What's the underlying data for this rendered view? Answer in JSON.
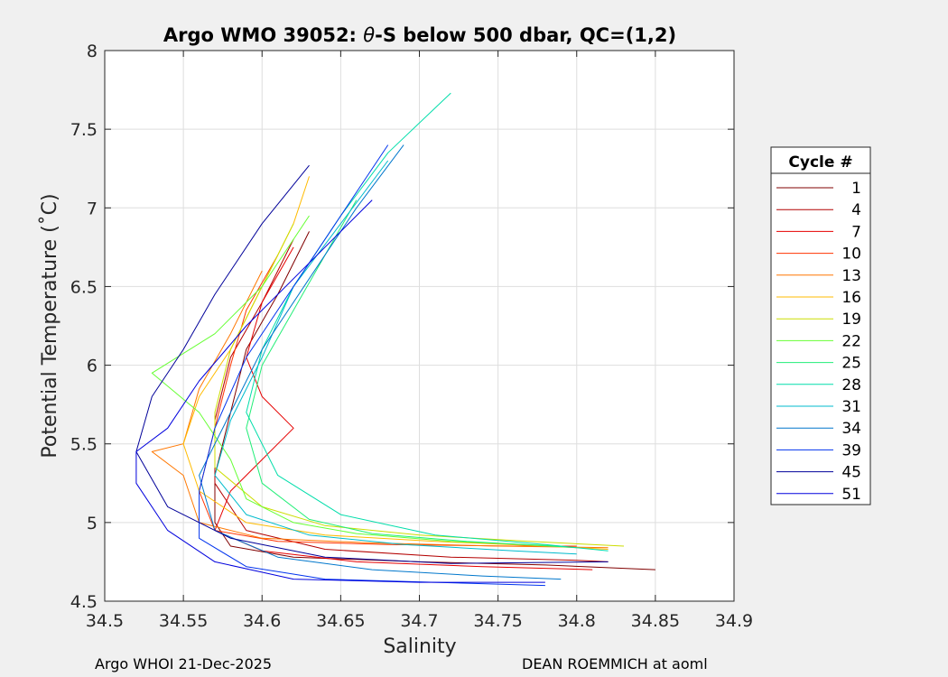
{
  "chart_data": {
    "type": "line",
    "title_prefix": "Argo WMO 39052: ",
    "title_theta": "θ",
    "title_suffix": "-S below 500 dbar,  QC=(1,2)",
    "xlabel": "Salinity",
    "ylabel": "Potential Temperature (˚C)",
    "xlim": [
      34.5,
      34.9
    ],
    "ylim": [
      4.5,
      8
    ],
    "xticks": [
      "34.5",
      "34.55",
      "34.6",
      "34.65",
      "34.7",
      "34.75",
      "34.8",
      "34.85",
      "34.9"
    ],
    "yticks": [
      "4.5",
      "5",
      "5.5",
      "6",
      "6.5",
      "7",
      "7.5",
      "8"
    ],
    "grid": true,
    "legend_title": "Cycle #",
    "legend_position": "right",
    "series": [
      {
        "name": "1",
        "color": "#800000",
        "salinity": [
          34.63,
          34.61,
          34.59,
          34.58,
          34.57,
          34.57,
          34.58,
          34.62,
          34.7,
          34.78,
          34.85
        ],
        "theta": [
          6.85,
          6.45,
          6.1,
          5.7,
          5.3,
          5.0,
          4.85,
          4.78,
          4.75,
          4.73,
          4.7
        ]
      },
      {
        "name": "4",
        "color": "#b30000",
        "salinity": [
          34.62,
          34.6,
          34.58,
          34.57,
          34.57,
          34.59,
          34.64,
          34.72,
          34.8,
          34.82
        ],
        "theta": [
          6.8,
          6.4,
          6.05,
          5.65,
          5.25,
          4.95,
          4.83,
          4.78,
          4.76,
          4.75
        ]
      },
      {
        "name": "7",
        "color": "#e60000",
        "salinity": [
          34.62,
          34.6,
          34.59,
          34.6,
          34.62,
          34.6,
          34.58,
          34.57,
          34.6,
          34.66,
          34.74,
          34.81
        ],
        "theta": [
          6.75,
          6.4,
          6.05,
          5.8,
          5.6,
          5.4,
          5.2,
          4.95,
          4.82,
          4.75,
          4.72,
          4.7
        ]
      },
      {
        "name": "10",
        "color": "#ff3300",
        "salinity": [
          34.61,
          34.59,
          34.58,
          34.57,
          34.56,
          34.57,
          34.61,
          34.68,
          34.76,
          34.8
        ],
        "theta": [
          6.7,
          6.35,
          6.0,
          5.6,
          5.2,
          4.95,
          4.88,
          4.86,
          4.85,
          4.85
        ]
      },
      {
        "name": "13",
        "color": "#ff7700",
        "salinity": [
          34.6,
          34.58,
          34.56,
          34.55,
          34.53,
          34.55,
          34.56,
          34.6,
          34.67,
          34.75,
          34.82
        ],
        "theta": [
          6.6,
          6.2,
          5.85,
          5.5,
          5.45,
          5.3,
          5.0,
          4.9,
          4.87,
          4.85,
          4.84
        ]
      },
      {
        "name": "16",
        "color": "#ffbb00",
        "salinity": [
          34.63,
          34.62,
          34.6,
          34.58,
          34.56,
          34.55,
          34.56,
          34.59,
          34.64,
          34.71,
          34.78,
          34.82
        ],
        "theta": [
          7.2,
          6.9,
          6.5,
          6.1,
          5.8,
          5.5,
          5.2,
          5.0,
          4.92,
          4.88,
          4.85,
          4.83
        ]
      },
      {
        "name": "19",
        "color": "#ccdd00",
        "salinity": [
          34.62,
          34.6,
          34.58,
          34.57,
          34.57,
          34.6,
          34.64,
          34.7,
          34.77,
          34.83
        ],
        "theta": [
          6.9,
          6.5,
          6.1,
          5.7,
          5.35,
          5.1,
          4.98,
          4.92,
          4.88,
          4.85
        ]
      },
      {
        "name": "22",
        "color": "#66ff33",
        "salinity": [
          34.63,
          34.6,
          34.57,
          34.53,
          34.56,
          34.58,
          34.59,
          34.62,
          34.66,
          34.72,
          34.79
        ],
        "theta": [
          6.95,
          6.5,
          6.2,
          5.95,
          5.7,
          5.4,
          5.15,
          5.0,
          4.93,
          4.88,
          4.85
        ]
      },
      {
        "name": "25",
        "color": "#22ee77",
        "salinity": [
          34.66,
          34.64,
          34.62,
          34.6,
          34.59,
          34.6,
          34.63,
          34.67,
          34.73,
          34.8
        ],
        "theta": [
          7.05,
          6.7,
          6.35,
          6.0,
          5.6,
          5.25,
          5.02,
          4.93,
          4.88,
          4.84
        ]
      },
      {
        "name": "28",
        "color": "#00ddaa",
        "salinity": [
          34.72,
          34.68,
          34.65,
          34.62,
          34.6,
          34.59,
          34.61,
          34.65,
          34.71,
          34.78,
          34.82
        ],
        "theta": [
          7.73,
          7.35,
          6.95,
          6.5,
          6.1,
          5.7,
          5.3,
          5.05,
          4.92,
          4.86,
          4.82
        ]
      },
      {
        "name": "31",
        "color": "#00bbcc",
        "salinity": [
          34.68,
          34.65,
          34.62,
          34.6,
          34.58,
          34.57,
          34.59,
          34.63,
          34.69,
          34.76,
          34.8
        ],
        "theta": [
          7.3,
          6.9,
          6.5,
          6.05,
          5.65,
          5.3,
          5.05,
          4.92,
          4.86,
          4.82,
          4.8
        ]
      },
      {
        "name": "34",
        "color": "#0077cc",
        "salinity": [
          34.69,
          34.66,
          34.63,
          34.6,
          34.58,
          34.56,
          34.57,
          34.61,
          34.67,
          34.74,
          34.79
        ],
        "theta": [
          7.4,
          7.0,
          6.55,
          6.1,
          5.7,
          5.3,
          4.95,
          4.78,
          4.7,
          4.66,
          4.64
        ]
      },
      {
        "name": "39",
        "color": "#0033ee",
        "salinity": [
          34.68,
          34.65,
          34.62,
          34.59,
          34.57,
          34.56,
          34.56,
          34.59,
          34.64,
          34.71,
          34.78
        ],
        "theta": [
          7.4,
          6.95,
          6.5,
          6.05,
          5.6,
          5.2,
          4.9,
          4.72,
          4.64,
          4.62,
          4.6
        ]
      },
      {
        "name": "45",
        "color": "#000099",
        "salinity": [
          34.63,
          34.6,
          34.57,
          34.55,
          34.53,
          34.52,
          34.54,
          34.58,
          34.64,
          34.72,
          34.82
        ],
        "theta": [
          7.27,
          6.9,
          6.45,
          6.1,
          5.8,
          5.45,
          5.1,
          4.9,
          4.78,
          4.74,
          4.75
        ]
      },
      {
        "name": "51",
        "color": "#0000dd",
        "salinity": [
          34.67,
          34.63,
          34.59,
          34.56,
          34.54,
          34.52,
          34.52,
          34.54,
          34.57,
          34.62,
          34.7,
          34.78
        ],
        "theta": [
          7.05,
          6.65,
          6.25,
          5.9,
          5.6,
          5.45,
          5.25,
          4.95,
          4.75,
          4.64,
          4.62,
          4.62
        ]
      }
    ]
  },
  "footer": {
    "left": "Argo WHOI 21-Dec-2025",
    "right": "DEAN ROEMMICH at aoml"
  }
}
